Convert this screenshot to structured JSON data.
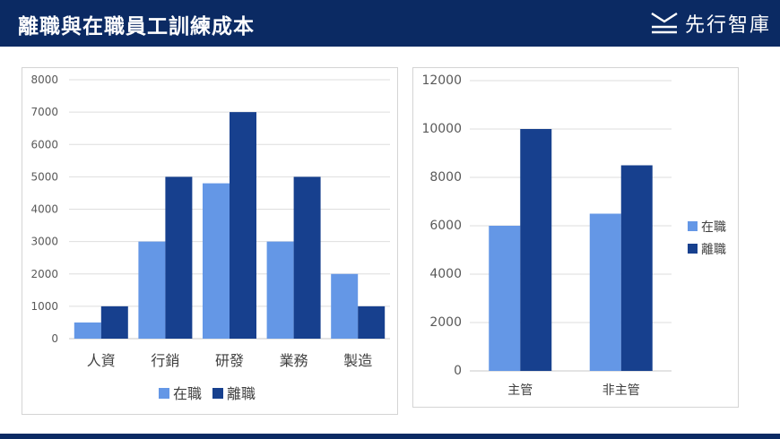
{
  "header": {
    "title": "離職與在職員工訓練成本",
    "brand_name": "先行智庫"
  },
  "chart_data": [
    {
      "type": "bar",
      "categories": [
        "人資",
        "行銷",
        "研發",
        "業務",
        "製造"
      ],
      "series": [
        {
          "name": "在職",
          "values": [
            500,
            3000,
            4800,
            3000,
            2000
          ]
        },
        {
          "name": "離職",
          "values": [
            1000,
            5000,
            7000,
            5000,
            1000
          ]
        }
      ],
      "ylim": [
        0,
        8000
      ],
      "yticks": [
        0,
        1000,
        2000,
        3000,
        4000,
        5000,
        6000,
        7000,
        8000
      ],
      "grid": true,
      "legend": "bottom",
      "colors": [
        "#6497e6",
        "#17408e"
      ]
    },
    {
      "type": "bar",
      "categories": [
        "主管",
        "非主管"
      ],
      "series": [
        {
          "name": "在職",
          "values": [
            6000,
            6500
          ]
        },
        {
          "name": "離職",
          "values": [
            10000,
            8500
          ]
        }
      ],
      "ylim": [
        0,
        12000
      ],
      "yticks": [
        0,
        2000,
        4000,
        6000,
        8000,
        10000,
        12000
      ],
      "grid": true,
      "legend": "right",
      "colors": [
        "#6497e6",
        "#17408e"
      ]
    }
  ]
}
